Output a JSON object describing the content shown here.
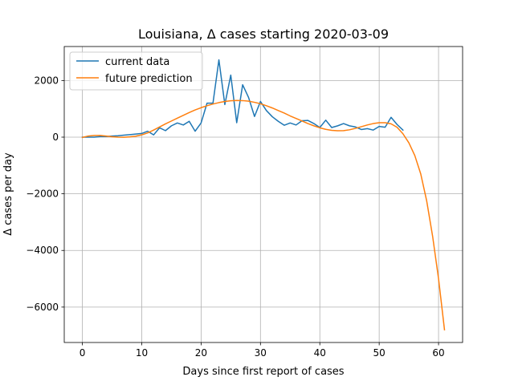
{
  "chart_data": {
    "type": "line",
    "title": "Louisiana, Δ cases starting 2020-03-09",
    "xlabel": "Days since first report of cases",
    "ylabel": "Δ cases per day",
    "xlim": [
      -3.05,
      64.05
    ],
    "ylim": [
      -7250,
      3200
    ],
    "xticks": [
      0,
      10,
      20,
      30,
      40,
      50,
      60
    ],
    "yticks": [
      -6000,
      -4000,
      -2000,
      0,
      2000
    ],
    "ytick_labels": [
      "−6000",
      "−4000",
      "−2000",
      "0",
      "2000"
    ],
    "grid": true,
    "legend_position": "top-left",
    "series": [
      {
        "name": "current data",
        "color": "#1f77b4",
        "x": [
          0,
          1,
          2,
          3,
          4,
          5,
          6,
          7,
          8,
          9,
          10,
          11,
          12,
          13,
          14,
          15,
          16,
          17,
          18,
          19,
          20,
          21,
          22,
          23,
          24,
          25,
          26,
          27,
          28,
          29,
          30,
          31,
          32,
          33,
          34,
          35,
          36,
          37,
          38,
          39,
          40,
          41,
          42,
          43,
          44,
          45,
          46,
          47,
          48,
          49,
          50,
          51,
          52,
          53,
          54
        ],
        "y": [
          0,
          0,
          0,
          20,
          20,
          40,
          50,
          70,
          90,
          110,
          130,
          210,
          80,
          330,
          230,
          400,
          500,
          430,
          560,
          210,
          500,
          1200,
          1200,
          2730,
          1150,
          2190,
          510,
          1850,
          1400,
          730,
          1260,
          940,
          720,
          560,
          420,
          500,
          430,
          580,
          590,
          480,
          340,
          600,
          340,
          400,
          480,
          400,
          360,
          270,
          300,
          250,
          380,
          350,
          700,
          450,
          250
        ]
      },
      {
        "name": "future prediction",
        "color": "#ff7f0e",
        "x": [
          0,
          1,
          2,
          3,
          4,
          5,
          6,
          7,
          8,
          9,
          10,
          11,
          12,
          13,
          14,
          15,
          16,
          17,
          18,
          19,
          20,
          21,
          22,
          23,
          24,
          25,
          26,
          27,
          28,
          29,
          30,
          31,
          32,
          33,
          34,
          35,
          36,
          37,
          38,
          39,
          40,
          41,
          42,
          43,
          44,
          45,
          46,
          47,
          48,
          49,
          50,
          51,
          52,
          53,
          54,
          55,
          56,
          57,
          58,
          59,
          60,
          61
        ],
        "y": [
          -10,
          40,
          60,
          60,
          40,
          15,
          0,
          -5,
          10,
          35,
          80,
          150,
          250,
          360,
          470,
          570,
          670,
          770,
          870,
          960,
          1040,
          1110,
          1170,
          1220,
          1260,
          1285,
          1295,
          1290,
          1270,
          1230,
          1180,
          1110,
          1030,
          940,
          850,
          750,
          660,
          570,
          480,
          400,
          330,
          275,
          240,
          225,
          230,
          260,
          310,
          370,
          430,
          480,
          510,
          510,
          470,
          350,
          120,
          -200,
          -650,
          -1300,
          -2250,
          -3500,
          -5000,
          -6800
        ]
      }
    ]
  }
}
